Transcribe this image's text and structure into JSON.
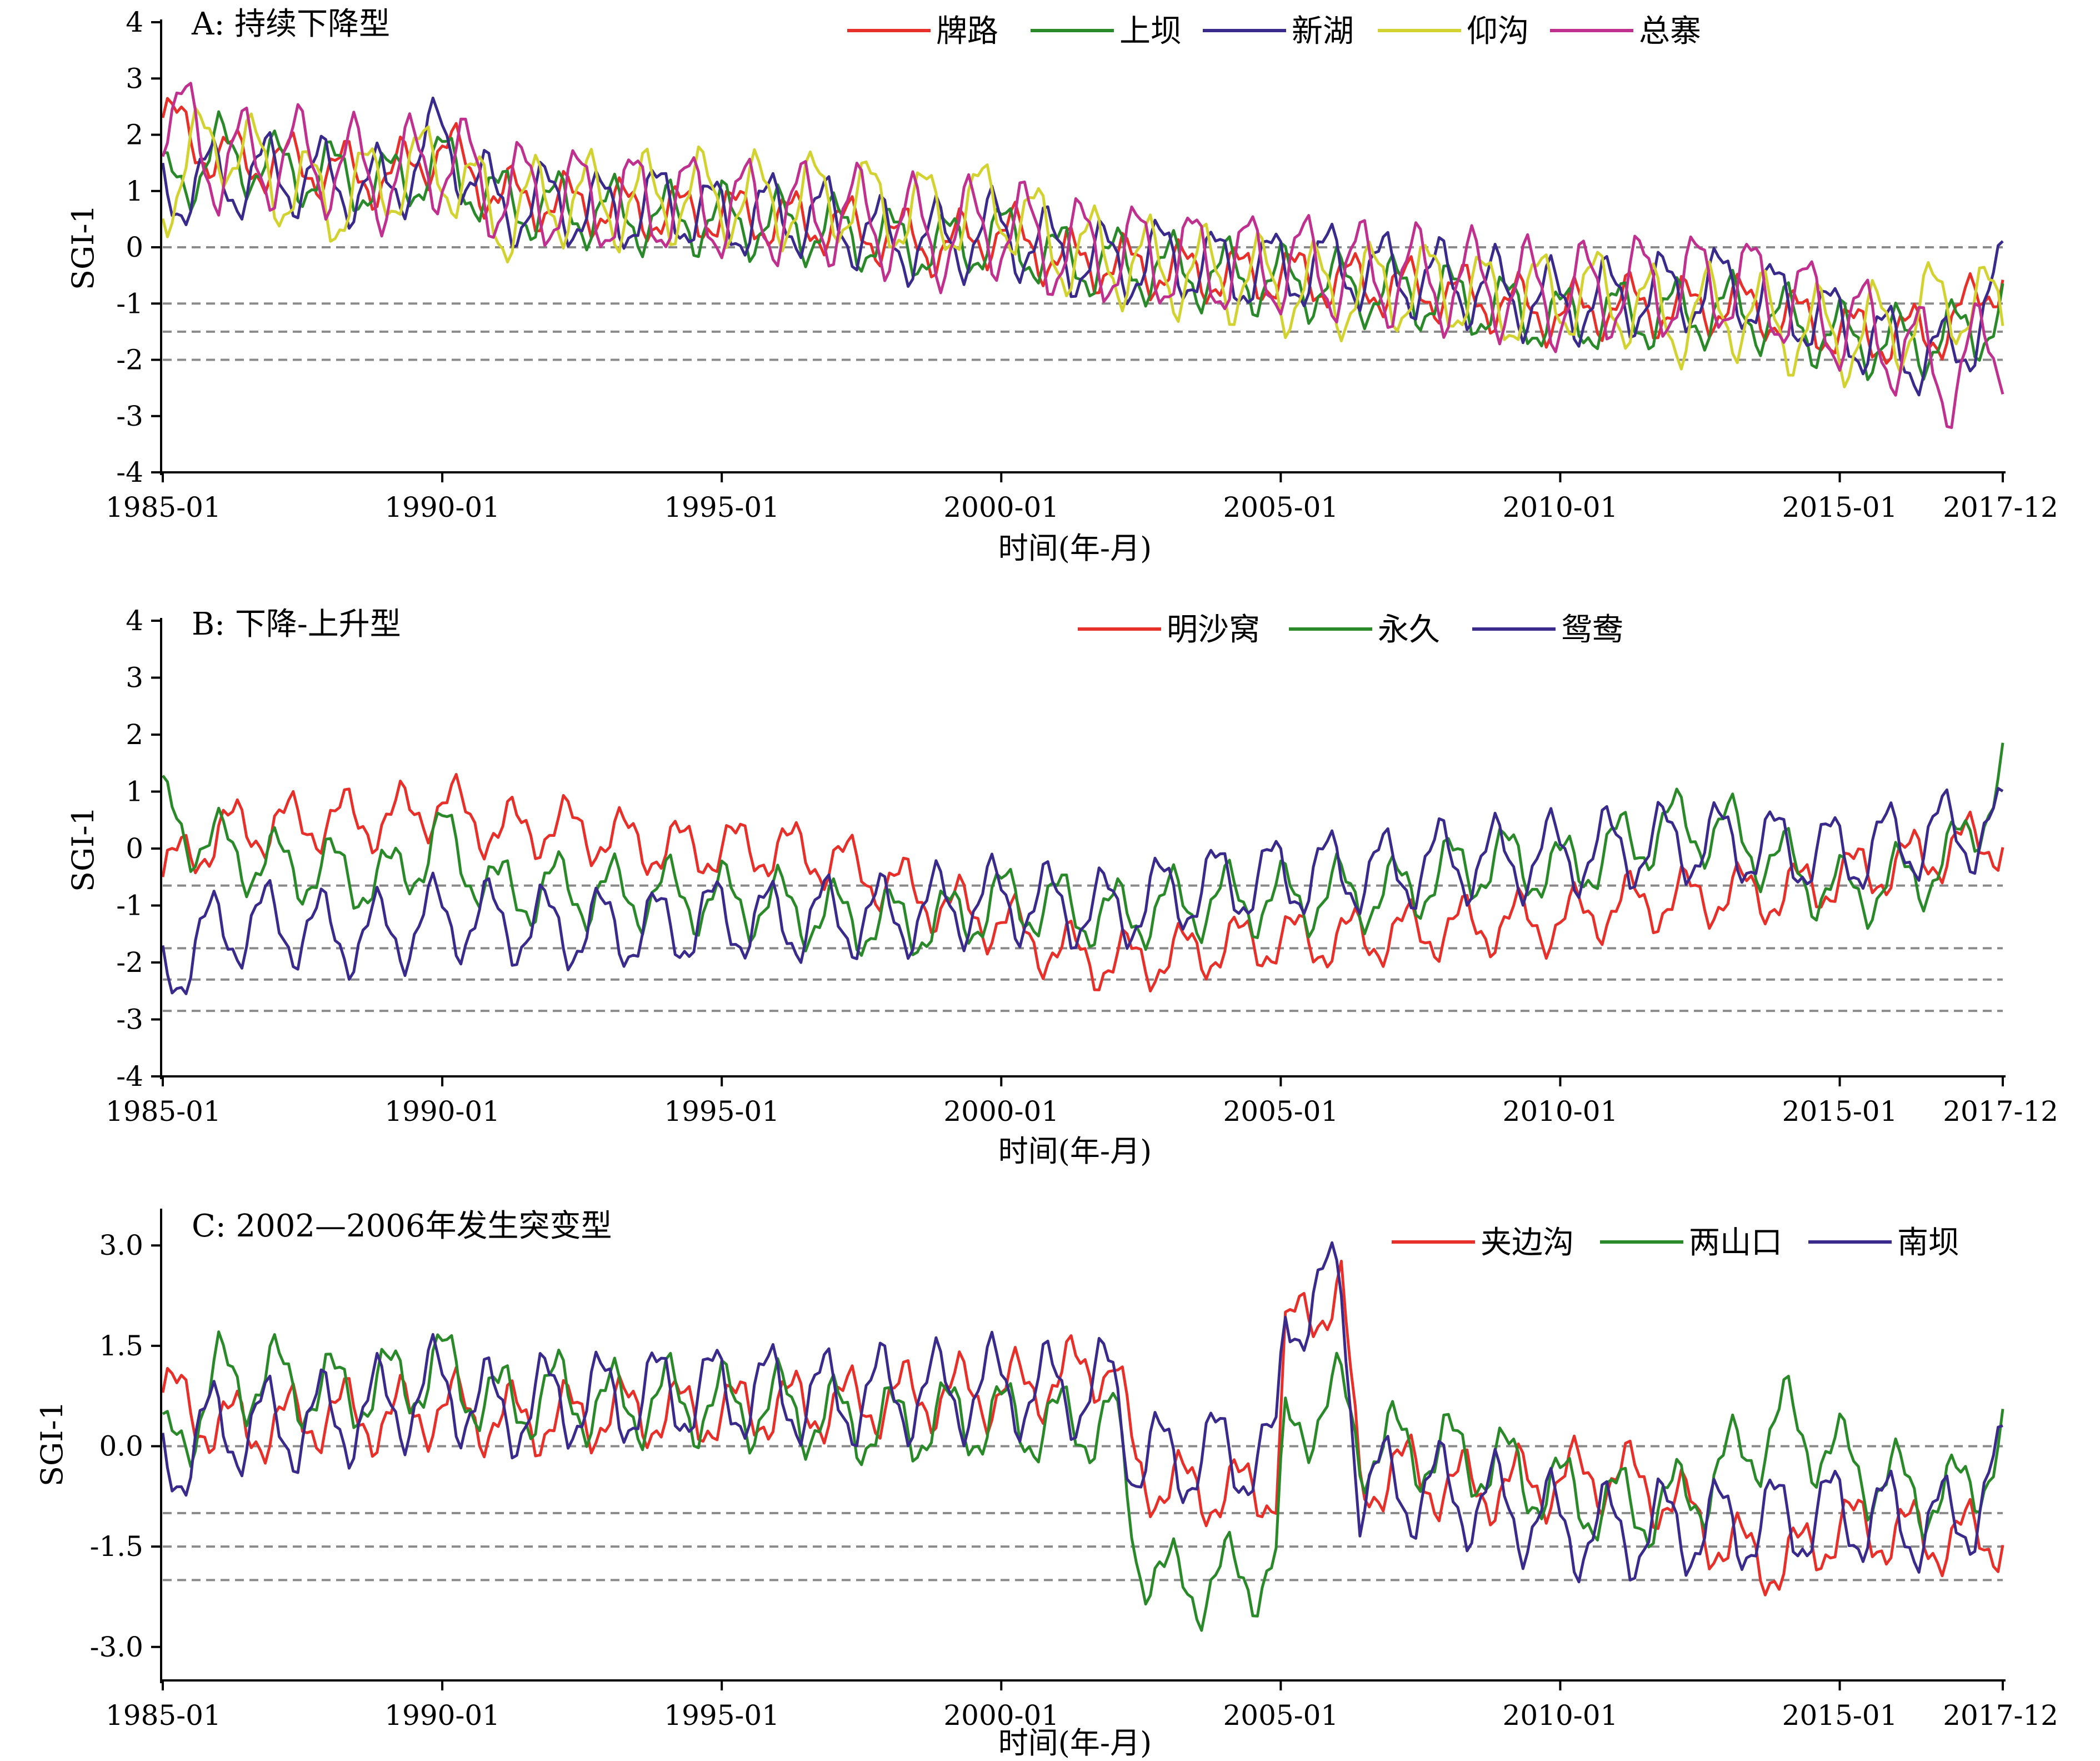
{
  "figure": {
    "x_axis_title": "时间(年-月)",
    "y_axis_title": "SGI-1"
  },
  "chart_data": [
    {
      "type": "line",
      "title": "A: 持续下降型",
      "ylabel": "SGI-1",
      "xlabel": "时间(年-月)",
      "x_range": [
        "1985-01",
        "2017-12"
      ],
      "x_ticks": [
        "1985-01",
        "1990-01",
        "1995-01",
        "2000-01",
        "2005-01",
        "2010-01",
        "2015-01",
        "2017-12"
      ],
      "ylim": [
        -4,
        4
      ],
      "y_ticks": [
        "4",
        "3",
        "2",
        "1",
        "0",
        "-1",
        "-2",
        "-3",
        "-4"
      ],
      "y_tick_values": [
        4,
        3,
        2,
        1,
        0,
        -1,
        -2,
        -3,
        -4
      ],
      "reference_lines": [
        0,
        -1,
        -1.5,
        -2
      ],
      "legend_position": "top",
      "x_sample": [
        "1985-01",
        "1986-01",
        "1987-01",
        "1988-01",
        "1989-01",
        "1990-01",
        "1991-01",
        "1992-01",
        "1993-01",
        "1994-01",
        "1995-01",
        "1996-01",
        "1997-01",
        "1998-01",
        "1999-01",
        "2000-01",
        "2001-01",
        "2002-01",
        "2003-01",
        "2004-01",
        "2005-01",
        "2006-01",
        "2007-01",
        "2008-01",
        "2009-01",
        "2010-01",
        "2011-01",
        "2012-01",
        "2013-01",
        "2014-01",
        "2015-01",
        "2016-01",
        "2017-01",
        "2017-12"
      ],
      "series": [
        {
          "name": "牌路",
          "color": "#e8302a",
          "values": [
            2.3,
            1.6,
            1.5,
            1.4,
            1.2,
            1.8,
            0.9,
            0.8,
            0.7,
            0.6,
            0.6,
            0.5,
            0.4,
            0.2,
            0.0,
            0.3,
            -0.2,
            -0.3,
            -0.4,
            -0.5,
            -0.5,
            -0.6,
            -0.7,
            -0.8,
            -1.0,
            -1.2,
            -1.0,
            -1.1,
            -1.0,
            -1.2,
            -1.5,
            -1.6,
            -1.4,
            -0.4
          ]
        },
        {
          "name": "上坝",
          "color": "#2a8a2a",
          "values": [
            1.0,
            1.7,
            1.4,
            1.3,
            1.1,
            1.5,
            0.8,
            0.7,
            0.6,
            0.5,
            0.5,
            0.4,
            0.3,
            0.1,
            0.0,
            0.2,
            -0.2,
            -0.3,
            -0.4,
            -0.5,
            -0.6,
            -0.7,
            -0.8,
            -0.9,
            -1.1,
            -1.3,
            -1.2,
            -1.2,
            -1.1,
            -1.3,
            -1.6,
            -1.7,
            -1.6,
            -1.2
          ]
        },
        {
          "name": "新湖",
          "color": "#3a2a8c",
          "values": [
            1.0,
            1.2,
            1.3,
            1.2,
            1.0,
            2.0,
            0.7,
            0.8,
            0.6,
            0.8,
            0.5,
            0.6,
            0.5,
            0.1,
            0.1,
            0.3,
            -0.1,
            -0.3,
            -0.2,
            -0.4,
            -0.4,
            -0.3,
            -0.5,
            -0.6,
            -0.8,
            -1.0,
            -0.9,
            -0.8,
            -0.7,
            -1.0,
            -1.4,
            -1.8,
            -2.0,
            -0.6
          ]
        },
        {
          "name": "仰沟",
          "color": "#d2d230",
          "values": [
            1.0,
            2.0,
            1.2,
            0.8,
            1.2,
            1.5,
            0.5,
            0.9,
            0.8,
            0.9,
            0.9,
            0.8,
            0.9,
            0.7,
            0.6,
            0.8,
            0.0,
            -0.2,
            -0.4,
            -0.5,
            -0.7,
            -0.8,
            -0.7,
            -0.7,
            -1.0,
            -0.8,
            -0.9,
            -1.3,
            -1.1,
            -1.4,
            -1.6,
            -1.4,
            -0.9,
            -1.2
          ]
        },
        {
          "name": "总寨",
          "color": "#c0308e",
          "values": [
            2.5,
            1.5,
            1.6,
            1.5,
            1.2,
            1.6,
            1.0,
            0.9,
            0.8,
            0.8,
            0.7,
            0.6,
            0.6,
            0.4,
            0.2,
            0.4,
            0.0,
            -0.1,
            -0.2,
            -0.3,
            -0.3,
            -0.4,
            -0.5,
            -0.6,
            -0.7,
            -0.9,
            -0.7,
            -0.7,
            -0.6,
            -0.9,
            -1.3,
            -1.7,
            -2.3,
            -1.6
          ]
        }
      ]
    },
    {
      "type": "line",
      "title": "B: 下降-上升型",
      "ylabel": "SGI-1",
      "xlabel": "时间(年-月)",
      "x_range": [
        "1985-01",
        "2017-12"
      ],
      "x_ticks": [
        "1985-01",
        "1990-01",
        "1995-01",
        "2000-01",
        "2005-01",
        "2010-01",
        "2015-01",
        "2017-12"
      ],
      "ylim": [
        -4,
        4
      ],
      "y_ticks": [
        "4",
        "3",
        "2",
        "1",
        "0",
        "-1",
        "-2",
        "-3",
        "-4"
      ],
      "y_tick_values": [
        4,
        3,
        2,
        1,
        0,
        -1,
        -2,
        -3,
        -4
      ],
      "reference_lines": [
        -0.65,
        -1.75,
        -2.3,
        -2.85
      ],
      "legend_position": "top",
      "x_sample": [
        "1985-01",
        "1986-01",
        "1987-01",
        "1988-01",
        "1989-01",
        "1990-01",
        "1991-01",
        "1992-01",
        "1993-01",
        "1994-01",
        "1995-01",
        "1996-01",
        "1997-01",
        "1998-01",
        "1999-01",
        "2000-01",
        "2001-01",
        "2002-01",
        "2003-01",
        "2004-01",
        "2005-01",
        "2006-01",
        "2007-01",
        "2008-01",
        "2009-01",
        "2010-01",
        "2011-01",
        "2012-01",
        "2013-01",
        "2014-01",
        "2015-01",
        "2016-01",
        "2017-01",
        "2017-12"
      ],
      "series": [
        {
          "name": "明沙窝",
          "color": "#e8302a",
          "values": [
            -0.5,
            0.3,
            0.4,
            0.5,
            0.5,
            0.8,
            0.3,
            0.4,
            0.2,
            0.0,
            0.0,
            0.0,
            -0.2,
            -0.6,
            -1.0,
            -1.3,
            -1.8,
            -2.0,
            -1.9,
            -1.7,
            -1.6,
            -1.6,
            -1.5,
            -1.4,
            -1.3,
            -1.3,
            -1.0,
            -0.9,
            -0.8,
            -0.8,
            -0.5,
            -0.3,
            0.0,
            0.2
          ]
        },
        {
          "name": "永久",
          "color": "#2a8a2a",
          "values": [
            0.6,
            0.0,
            -0.3,
            -0.4,
            -0.6,
            0.2,
            -0.8,
            -0.7,
            -0.8,
            -0.8,
            -0.9,
            -1.0,
            -1.2,
            -1.3,
            -1.3,
            -0.9,
            -1.0,
            -1.2,
            -1.0,
            -0.9,
            -0.9,
            -0.8,
            -0.8,
            -0.4,
            -0.2,
            -0.4,
            0.0,
            0.4,
            0.3,
            -0.3,
            -0.8,
            -0.6,
            -0.2,
            1.3
          ]
        },
        {
          "name": "鸳鸯",
          "color": "#3a2a8c",
          "values": [
            -2.2,
            -1.4,
            -1.3,
            -1.5,
            -1.5,
            -1.2,
            -1.3,
            -1.4,
            -1.4,
            -1.4,
            -1.2,
            -1.3,
            -1.2,
            -1.2,
            -1.0,
            -0.9,
            -1.0,
            -1.1,
            -0.8,
            -0.6,
            -0.5,
            -0.4,
            -0.4,
            -0.2,
            -0.2,
            -0.1,
            0.0,
            0.1,
            0.1,
            0.0,
            -0.1,
            0.1,
            0.3,
            0.3
          ]
        }
      ]
    },
    {
      "type": "line",
      "title": "C: 2002—2006年发生突变型",
      "ylabel": "SGI-1",
      "xlabel": "时间(年-月)",
      "x_range": [
        "1985-01",
        "2017-12"
      ],
      "x_ticks": [
        "1985-01",
        "1990-01",
        "1995-01",
        "2000-01",
        "2005-01",
        "2010-01",
        "2015-01",
        "2017-12"
      ],
      "ylim": [
        -3.5,
        3.5
      ],
      "y_ticks": [
        "3.0",
        "1.5",
        "0.0",
        "-1.5",
        "-3.0"
      ],
      "y_tick_values": [
        3.0,
        1.5,
        0.0,
        -1.5,
        -3.0
      ],
      "reference_lines": [
        0,
        -1,
        -1.5,
        -2
      ],
      "legend_position": "top-right",
      "x_sample": [
        "1985-01",
        "1986-01",
        "1987-01",
        "1988-01",
        "1989-01",
        "1990-01",
        "1991-01",
        "1992-01",
        "1993-01",
        "1994-01",
        "1995-01",
        "1996-01",
        "1997-01",
        "1998-01",
        "1999-01",
        "2000-01",
        "2001-01",
        "2002-01",
        "2002-06",
        "2003-01",
        "2004-01",
        "2004-12",
        "2005-02",
        "2005-09",
        "2006-02",
        "2006-06",
        "2007-01",
        "2008-01",
        "2009-01",
        "2010-01",
        "2011-01",
        "2012-01",
        "2013-01",
        "2014-01",
        "2015-01",
        "2016-01",
        "2017-01",
        "2017-12"
      ],
      "series": [
        {
          "name": "夹边沟",
          "color": "#e8302a",
          "values": [
            0.8,
            0.3,
            0.3,
            0.5,
            0.4,
            0.6,
            0.4,
            0.4,
            0.5,
            0.5,
            0.5,
            0.6,
            0.6,
            0.7,
            0.8,
            0.8,
            1.0,
            1.3,
            -0.4,
            -0.6,
            -0.7,
            -0.6,
            1.6,
            2.1,
            2.4,
            -0.7,
            -0.3,
            -0.6,
            -0.6,
            -0.5,
            -0.4,
            -0.8,
            -1.5,
            -1.8,
            -1.2,
            -1.3,
            -1.4,
            -1.3
          ]
        },
        {
          "name": "两山口",
          "color": "#2a8a2a",
          "values": [
            -0.2,
            1.0,
            1.0,
            0.8,
            0.9,
            1.2,
            0.6,
            0.8,
            0.6,
            0.7,
            0.6,
            0.6,
            0.4,
            0.3,
            0.4,
            0.4,
            0.3,
            0.4,
            -1.5,
            -2.1,
            -2.0,
            -1.8,
            0.1,
            0.6,
            0.7,
            0.0,
            0.0,
            -0.1,
            -0.3,
            -0.7,
            -0.9,
            -0.9,
            -0.3,
            0.4,
            -0.2,
            -0.6,
            -0.8,
            0.0
          ]
        },
        {
          "name": "南坝",
          "color": "#3a2a8c",
          "values": [
            -0.3,
            0.3,
            0.3,
            0.4,
            0.6,
            0.9,
            0.5,
            0.7,
            0.7,
            0.8,
            0.8,
            0.8,
            0.7,
            0.8,
            0.8,
            0.9,
            0.8,
            0.9,
            -0.2,
            -0.2,
            -0.1,
            -0.2,
            2.0,
            2.2,
            2.4,
            -0.6,
            -0.6,
            -0.7,
            -0.9,
            -1.2,
            -1.3,
            -1.2,
            -1.2,
            -1.1,
            -1.0,
            -1.1,
            -1.2,
            -0.4
          ]
        }
      ]
    }
  ]
}
